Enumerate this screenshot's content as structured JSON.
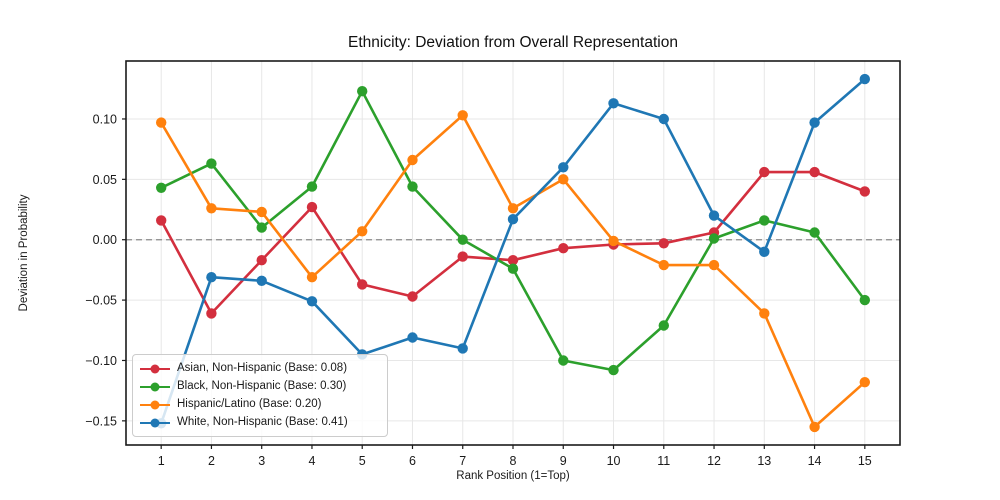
{
  "style": {
    "figure_background": "#ffffff",
    "plot_background": "#ffffff",
    "grid_color": "#e7e7e7",
    "spine_color": "#1a1a1a",
    "zero_line_color": "#8a8a8a",
    "tick_label_color": "#1a1a1a",
    "title_color": "#111111"
  },
  "chart_data": {
    "type": "line",
    "title": "Ethnicity: Deviation from Overall Representation",
    "xlabel": "Rank Position (1=Top)",
    "ylabel": "Deviation in Probability",
    "grid": true,
    "zero_line": true,
    "legend_position": "lower left",
    "x": [
      1,
      2,
      3,
      4,
      5,
      6,
      7,
      8,
      9,
      10,
      11,
      12,
      13,
      14,
      15
    ],
    "xtick_labels": [
      "1",
      "2",
      "3",
      "4",
      "5",
      "6",
      "7",
      "8",
      "9",
      "10",
      "11",
      "12",
      "13",
      "14",
      "15"
    ],
    "xlim": [
      0.3,
      15.7
    ],
    "ylim": [
      -0.17,
      0.148
    ],
    "yticks": [
      0.1,
      0.05,
      0.0,
      -0.05,
      -0.1,
      -0.15
    ],
    "ytick_labels": [
      "0.10",
      "0.05",
      "0.00",
      "−0.05",
      "−0.10",
      "−0.15"
    ],
    "series": [
      {
        "name": "Asian, Non-Hispanic (Base: 0.08)",
        "color": "#d32f3e",
        "values": [
          0.016,
          -0.061,
          -0.017,
          0.027,
          -0.037,
          -0.047,
          -0.014,
          -0.017,
          -0.007,
          -0.004,
          -0.003,
          0.006,
          0.056,
          0.056,
          0.04
        ]
      },
      {
        "name": "Black, Non-Hispanic (Base: 0.30)",
        "color": "#2ca02c",
        "values": [
          0.043,
          0.063,
          0.01,
          0.044,
          0.123,
          0.044,
          0.0,
          -0.024,
          -0.1,
          -0.108,
          -0.071,
          0.001,
          0.016,
          0.006,
          -0.05
        ]
      },
      {
        "name": "Hispanic/Latino (Base: 0.20)",
        "color": "#ff810e",
        "values": [
          0.097,
          0.026,
          0.023,
          -0.031,
          0.007,
          0.066,
          0.103,
          0.026,
          0.05,
          -0.001,
          -0.021,
          -0.021,
          -0.061,
          -0.155,
          -0.118
        ]
      },
      {
        "name": "White, Non-Hispanic (Base: 0.41)",
        "color": "#1f77b4",
        "values": [
          -0.152,
          -0.031,
          -0.034,
          -0.051,
          -0.095,
          -0.081,
          -0.09,
          0.017,
          0.06,
          0.113,
          0.1,
          0.02,
          -0.01,
          0.097,
          0.133
        ]
      }
    ]
  }
}
